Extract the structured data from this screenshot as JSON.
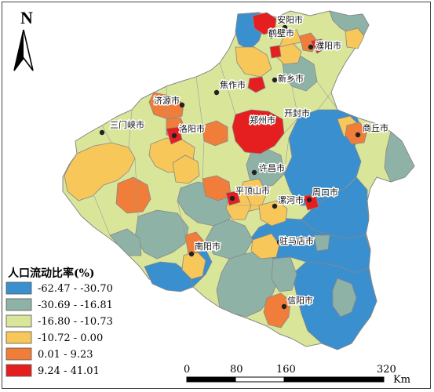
{
  "north_arrow": {
    "letter": "N"
  },
  "legend": {
    "title": "人口流动比率(%)",
    "classes": [
      {
        "label": "-62.47 - -30.70",
        "color": "#3a8fcf"
      },
      {
        "label": "-30.69 - -16.81",
        "color": "#8fb2a6"
      },
      {
        "label": "-16.80 - -10.73",
        "color": "#d9e69a"
      },
      {
        "label": "-10.72 - 0.00",
        "color": "#f7c75a"
      },
      {
        "label": "0.01 - 9.23",
        "color": "#f07d3a"
      },
      {
        "label": "9.24 - 41.01",
        "color": "#e51f1f"
      }
    ]
  },
  "scale_bar": {
    "ticks": [
      "0",
      "80",
      "160",
      "320"
    ],
    "unit": "Km"
  },
  "cities": [
    {
      "name": "安阳市"
    },
    {
      "name": "鹤壁市"
    },
    {
      "name": "濮阳市"
    },
    {
      "name": "新乡市"
    },
    {
      "name": "焦作市"
    },
    {
      "name": "济源市"
    },
    {
      "name": "开封市"
    },
    {
      "name": "郑州市"
    },
    {
      "name": "三门峡市"
    },
    {
      "name": "洛阳市"
    },
    {
      "name": "商丘市"
    },
    {
      "name": "许昌市"
    },
    {
      "name": "平顶山市"
    },
    {
      "name": "漯河市"
    },
    {
      "name": "周口市"
    },
    {
      "name": "驻马店市"
    },
    {
      "name": "南阳市"
    },
    {
      "name": "信阳市"
    }
  ]
}
